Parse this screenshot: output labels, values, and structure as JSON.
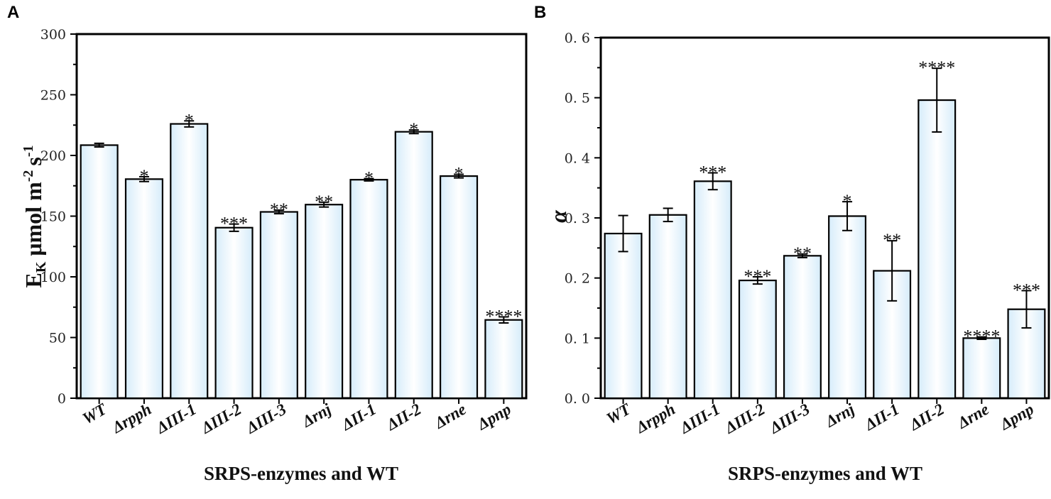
{
  "chart_data": [
    {
      "panel": "A",
      "type": "bar",
      "categories": [
        "WT",
        "Δrpph",
        "ΔIII-1",
        "ΔIII-2",
        "ΔIII-3",
        "Δrnj",
        "ΔII-1",
        "ΔII-2",
        "Δrne",
        "Δpnp"
      ],
      "values": [
        208.5,
        180.5,
        226,
        140.5,
        153.5,
        159.5,
        180,
        219.5,
        183,
        64.5
      ],
      "errors": [
        1.5,
        2,
        2.5,
        3,
        1.5,
        2,
        1,
        1.5,
        1.5,
        2.5
      ],
      "significance": [
        "",
        "*",
        "*",
        "***",
        "**",
        "**",
        "*",
        "*",
        "*",
        "****"
      ],
      "ylim": [
        0,
        300
      ],
      "yticks": [
        0,
        50,
        100,
        150,
        200,
        250,
        300
      ],
      "ytick_labels": [
        "0",
        "50",
        "100",
        "150",
        "200",
        "250",
        "300"
      ],
      "xlabel": "SRPS-enzymes and WT",
      "ylabel": {
        "main": "E",
        "sub": "K",
        "unit": "μmol m",
        "exp1": "-2",
        "s": "s",
        "exp2": "-1"
      },
      "bar_color_edge": "#dbeffb",
      "bar_color_center": "#ffffff"
    },
    {
      "panel": "B",
      "type": "bar",
      "categories": [
        "WT",
        "Δrpph",
        "ΔIII-1",
        "ΔIII-2",
        "ΔIII-3",
        "Δrnj",
        "ΔII-1",
        "ΔII-2",
        "Δrne",
        "Δpnp"
      ],
      "values": [
        0.274,
        0.305,
        0.361,
        0.196,
        0.237,
        0.303,
        0.212,
        0.496,
        0.1,
        0.148
      ],
      "errors": [
        0.03,
        0.011,
        0.014,
        0.006,
        0.003,
        0.024,
        0.05,
        0.053,
        0.002,
        0.031
      ],
      "significance": [
        "",
        "",
        "***",
        "***",
        "**",
        "*",
        "**",
        "****",
        "****",
        "***"
      ],
      "ylim": [
        0,
        0.6
      ],
      "yticks": [
        0,
        0.1,
        0.2,
        0.3,
        0.4,
        0.5,
        0.6
      ],
      "ytick_labels": [
        "0. 0",
        "0. 1",
        "0. 2",
        "0. 3",
        "0. 4",
        "0. 5",
        "0. 6"
      ],
      "xlabel": "SRPS-enzymes and WT",
      "ylabel": {
        "main": "α"
      },
      "bar_color_edge": "#dbeffb",
      "bar_color_center": "#ffffff"
    }
  ]
}
